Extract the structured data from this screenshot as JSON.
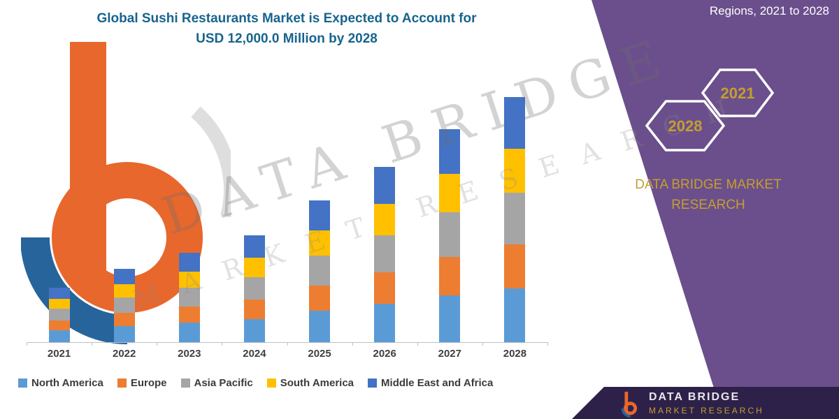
{
  "title": {
    "line1": "Global Sushi Restaurants Market is Expected to Account for",
    "line2": "USD 12,000.0 Million by 2028"
  },
  "side_panel": {
    "top_text": "Regions, 2021 to 2028",
    "hexagon_left": "2028",
    "hexagon_right": "2021",
    "brand_line1": "DATA BRIDGE MARKET",
    "brand_line2": "RESEARCH",
    "panel_color": "#6B4F8C",
    "gold_color": "#C49F2E"
  },
  "watermark": {
    "line1": "DATA BRIDGE",
    "line2": "MARKET RESEARCH"
  },
  "footer_logo": {
    "name": "DATA BRIDGE",
    "sub": "MARKET RESEARCH"
  },
  "chart_data": {
    "type": "bar",
    "stacked": true,
    "title": "Global Sushi Restaurants Market is Expected to Account for USD 12,000.0 Million by 2028",
    "unit": "USD Million",
    "categories": [
      "2021",
      "2022",
      "2023",
      "2024",
      "2025",
      "2026",
      "2027",
      "2028"
    ],
    "series": [
      {
        "name": "North America",
        "color": "#5B9BD5",
        "values": [
          590,
          780,
          970,
          1140,
          1520,
          1890,
          2290,
          2640
        ]
      },
      {
        "name": "Europe",
        "color": "#ED7D31",
        "values": [
          490,
          640,
          790,
          940,
          1240,
          1550,
          1870,
          2160
        ]
      },
      {
        "name": "Asia Pacific",
        "color": "#A5A5A5",
        "values": [
          570,
          750,
          920,
          1090,
          1450,
          1810,
          2180,
          2520
        ]
      },
      {
        "name": "South America",
        "color": "#FFC000",
        "values": [
          490,
          640,
          790,
          940,
          1240,
          1550,
          1870,
          2160
        ]
      },
      {
        "name": "Middle East and Africa",
        "color": "#4472C4",
        "values": [
          560,
          740,
          930,
          1090,
          1450,
          1800,
          2190,
          2520
        ]
      }
    ],
    "totals": [
      2700,
      3550,
      4400,
      5200,
      6900,
      8600,
      10400,
      12000
    ],
    "ylim": [
      0,
      12000
    ],
    "grid": false,
    "legend_position": "bottom"
  }
}
